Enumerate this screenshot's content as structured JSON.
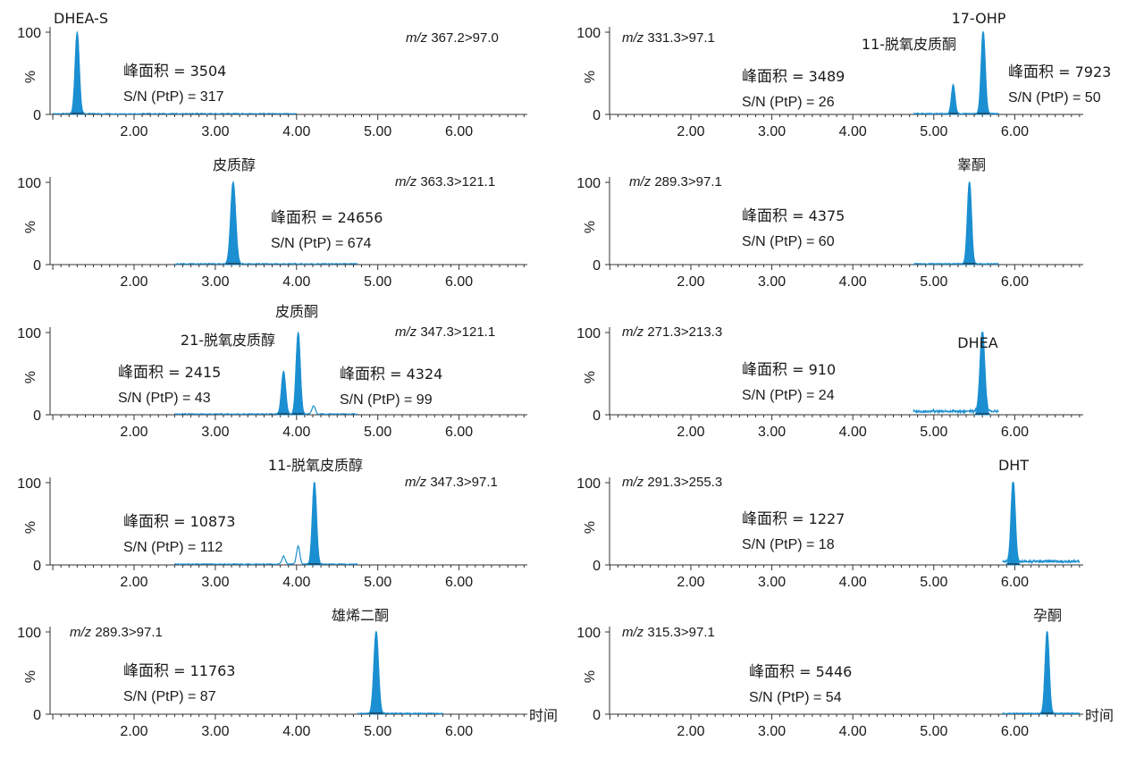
{
  "chart_data": [
    {
      "type": "line",
      "panel": "left-1",
      "transition": {
        "prefix": "m/z",
        "value": "367.2>97.0"
      },
      "peak_labels": [
        {
          "text": "DHEA-S",
          "rt": 1.3
        }
      ],
      "annotations": [
        {
          "area_label": "峰面积",
          "area_value": "= 3504",
          "sn_text": "S/N (PtP) = 317"
        }
      ],
      "peaks": [
        {
          "rt": 1.3,
          "height": 100,
          "width": 0.025,
          "filled": true
        }
      ],
      "baseline_range": [
        1.0,
        4.0
      ],
      "xlim": [
        1.0,
        6.8
      ],
      "ylim": [
        0,
        100
      ],
      "xticks": [
        "2.00",
        "3.00",
        "4.00",
        "5.00",
        "6.00"
      ],
      "yticks": [
        "0",
        "100"
      ],
      "ylabel": "%"
    },
    {
      "type": "line",
      "panel": "left-2",
      "transition": {
        "prefix": "m/z",
        "value": "363.3>121.1"
      },
      "peak_labels": [
        {
          "text": "皮质醇",
          "rt": 3.22
        }
      ],
      "annotations": [
        {
          "area_label": "峰面积",
          "area_value": "= 24656",
          "sn_text": "S/N (PtP) = 674"
        }
      ],
      "peaks": [
        {
          "rt": 3.22,
          "height": 100,
          "width": 0.03,
          "filled": true
        }
      ],
      "baseline_range": [
        2.5,
        4.75
      ],
      "xlim": [
        1.0,
        6.8
      ],
      "ylim": [
        0,
        100
      ],
      "xticks": [
        "2.00",
        "3.00",
        "4.00",
        "5.00",
        "6.00"
      ],
      "yticks": [
        "0",
        "100"
      ],
      "ylabel": "%"
    },
    {
      "type": "line",
      "panel": "left-3",
      "transition": {
        "prefix": "m/z",
        "value": "347.3>121.1"
      },
      "peak_labels": [
        {
          "text": "皮质酮",
          "rt": 4.0
        },
        {
          "text": "21-脱氧皮质醇",
          "rt": 3.2
        }
      ],
      "annotations": [
        {
          "area_label": "峰面积",
          "area_value": "= 2415",
          "sn_text": "S/N (PtP) = 43"
        },
        {
          "area_label": "峰面积",
          "area_value": "= 4324",
          "sn_text": "S/N (PtP) = 99"
        }
      ],
      "peaks": [
        {
          "rt": 3.84,
          "height": 52,
          "width": 0.025,
          "filled": true
        },
        {
          "rt": 4.02,
          "height": 100,
          "width": 0.025,
          "filled": true
        },
        {
          "rt": 4.21,
          "height": 10,
          "width": 0.02,
          "filled": false
        }
      ],
      "baseline_range": [
        2.5,
        4.75
      ],
      "xlim": [
        1.0,
        6.8
      ],
      "ylim": [
        0,
        100
      ],
      "xticks": [
        "2.00",
        "3.00",
        "4.00",
        "5.00",
        "6.00"
      ],
      "yticks": [
        "0",
        "100"
      ],
      "ylabel": "%"
    },
    {
      "type": "line",
      "panel": "left-4",
      "transition": {
        "prefix": "m/z",
        "value": "347.3>97.1"
      },
      "peak_labels": [
        {
          "text": "11-脱氧皮质醇",
          "rt": 3.5
        }
      ],
      "annotations": [
        {
          "area_label": "峰面积",
          "area_value": "= 10873",
          "sn_text": "S/N (PtP) = 112"
        }
      ],
      "peaks": [
        {
          "rt": 3.84,
          "height": 10,
          "width": 0.02,
          "filled": false
        },
        {
          "rt": 4.02,
          "height": 22,
          "width": 0.02,
          "filled": false
        },
        {
          "rt": 4.22,
          "height": 100,
          "width": 0.025,
          "filled": true
        }
      ],
      "baseline_range": [
        2.5,
        4.75
      ],
      "xlim": [
        1.0,
        6.8
      ],
      "ylim": [
        0,
        100
      ],
      "xticks": [
        "2.00",
        "3.00",
        "4.00",
        "5.00",
        "6.00"
      ],
      "yticks": [
        "0",
        "100"
      ],
      "ylabel": "%"
    },
    {
      "type": "line",
      "panel": "left-5",
      "transition": {
        "prefix": "m/z",
        "value": "289.3>97.1"
      },
      "peak_labels": [
        {
          "text": "雄烯二酮",
          "rt": 4.95
        }
      ],
      "annotations": [
        {
          "area_label": "峰面积",
          "area_value": "= 11763",
          "sn_text": "S/N (PtP) = 87"
        }
      ],
      "peaks": [
        {
          "rt": 4.98,
          "height": 100,
          "width": 0.028,
          "filled": true
        }
      ],
      "baseline_range": [
        4.75,
        5.8
      ],
      "xlim": [
        1.0,
        6.8
      ],
      "ylim": [
        0,
        100
      ],
      "xticks": [
        "2.00",
        "3.00",
        "4.00",
        "5.00",
        "6.00"
      ],
      "yticks": [
        "0",
        "100"
      ],
      "ylabel": "%",
      "xlabel": "时间"
    },
    {
      "type": "line",
      "panel": "right-1",
      "transition": {
        "prefix": "m/z",
        "value": "331.3>97.1"
      },
      "peak_labels": [
        {
          "text": "17-OHP",
          "rt": 5.6
        },
        {
          "text": "11-脱氧皮质酮",
          "rt": 5.2
        }
      ],
      "annotations": [
        {
          "area_label": "峰面积",
          "area_value": "= 3489",
          "sn_text": "S/N (PtP) = 26"
        },
        {
          "area_label": "峰面积",
          "area_value": "= 7923",
          "sn_text": "S/N (PtP) = 50"
        }
      ],
      "peaks": [
        {
          "rt": 5.24,
          "height": 35,
          "width": 0.022,
          "filled": true
        },
        {
          "rt": 5.61,
          "height": 100,
          "width": 0.025,
          "filled": true
        }
      ],
      "baseline_range": [
        4.75,
        5.8
      ],
      "xlim": [
        1.0,
        6.8
      ],
      "ylim": [
        0,
        100
      ],
      "xticks": [
        "2.00",
        "3.00",
        "4.00",
        "5.00",
        "6.00"
      ],
      "yticks": [
        "0",
        "100"
      ],
      "ylabel": "%"
    },
    {
      "type": "line",
      "panel": "right-2",
      "transition": {
        "prefix": "m/z",
        "value": "289.3>97.1"
      },
      "peak_labels": [
        {
          "text": "睾酮",
          "rt": 5.44
        }
      ],
      "annotations": [
        {
          "area_label": "峰面积",
          "area_value": "= 4375",
          "sn_text": "S/N (PtP) = 60"
        }
      ],
      "peaks": [
        {
          "rt": 5.44,
          "height": 100,
          "width": 0.025,
          "filled": true
        }
      ],
      "baseline_range": [
        4.75,
        5.8
      ],
      "xlim": [
        1.0,
        6.8
      ],
      "ylim": [
        0,
        100
      ],
      "xticks": [
        "2.00",
        "3.00",
        "4.00",
        "5.00",
        "6.00"
      ],
      "yticks": [
        "0",
        "100"
      ],
      "ylabel": "%"
    },
    {
      "type": "line",
      "panel": "right-3",
      "transition": {
        "prefix": "m/z",
        "value": "271.3>213.3"
      },
      "peak_labels": [
        {
          "text": "DHEA",
          "rt": 5.58
        }
      ],
      "annotations": [
        {
          "area_label": "峰面积",
          "area_value": "= 910",
          "sn_text": "S/N (PtP) = 24"
        }
      ],
      "peaks": [
        {
          "rt": 5.6,
          "height": 100,
          "width": 0.028,
          "filled": true
        }
      ],
      "baseline_range": [
        4.75,
        5.8
      ],
      "xlim": [
        1.0,
        6.8
      ],
      "ylim": [
        0,
        100
      ],
      "xticks": [
        "2.00",
        "3.00",
        "4.00",
        "5.00",
        "6.00"
      ],
      "yticks": [
        "0",
        "100"
      ],
      "ylabel": "%"
    },
    {
      "type": "line",
      "panel": "right-4",
      "transition": {
        "prefix": "m/z",
        "value": "291.3>255.3"
      },
      "peak_labels": [
        {
          "text": "DHT",
          "rt": 5.95
        }
      ],
      "annotations": [
        {
          "area_label": "峰面积",
          "area_value": "= 1227",
          "sn_text": "S/N (PtP) = 18"
        }
      ],
      "peaks": [
        {
          "rt": 5.98,
          "height": 100,
          "width": 0.025,
          "filled": true
        }
      ],
      "baseline_range": [
        5.85,
        6.8
      ],
      "xlim": [
        1.0,
        6.8
      ],
      "ylim": [
        0,
        100
      ],
      "xticks": [
        "2.00",
        "3.00",
        "4.00",
        "5.00",
        "6.00"
      ],
      "yticks": [
        "0",
        "100"
      ],
      "ylabel": "%"
    },
    {
      "type": "line",
      "panel": "right-5",
      "transition": {
        "prefix": "m/z",
        "value": "315.3>97.1"
      },
      "peak_labels": [
        {
          "text": "孕酮",
          "rt": 6.38
        }
      ],
      "annotations": [
        {
          "area_label": "峰面积",
          "area_value": "= 5446",
          "sn_text": "S/N (PtP) = 54"
        }
      ],
      "peaks": [
        {
          "rt": 6.4,
          "height": 100,
          "width": 0.025,
          "filled": true
        }
      ],
      "baseline_range": [
        5.85,
        6.8
      ],
      "xlim": [
        1.0,
        6.8
      ],
      "ylim": [
        0,
        100
      ],
      "xticks": [
        "2.00",
        "3.00",
        "4.00",
        "5.00",
        "6.00"
      ],
      "yticks": [
        "0",
        "100"
      ],
      "ylabel": "%",
      "xlabel": "时间"
    }
  ],
  "colors": {
    "trace": "#1b8fd1",
    "fill": "#1b8fd1",
    "axis": "#333333",
    "text": "#1a1a1a",
    "baseline_mark": "#1a1a1a"
  }
}
